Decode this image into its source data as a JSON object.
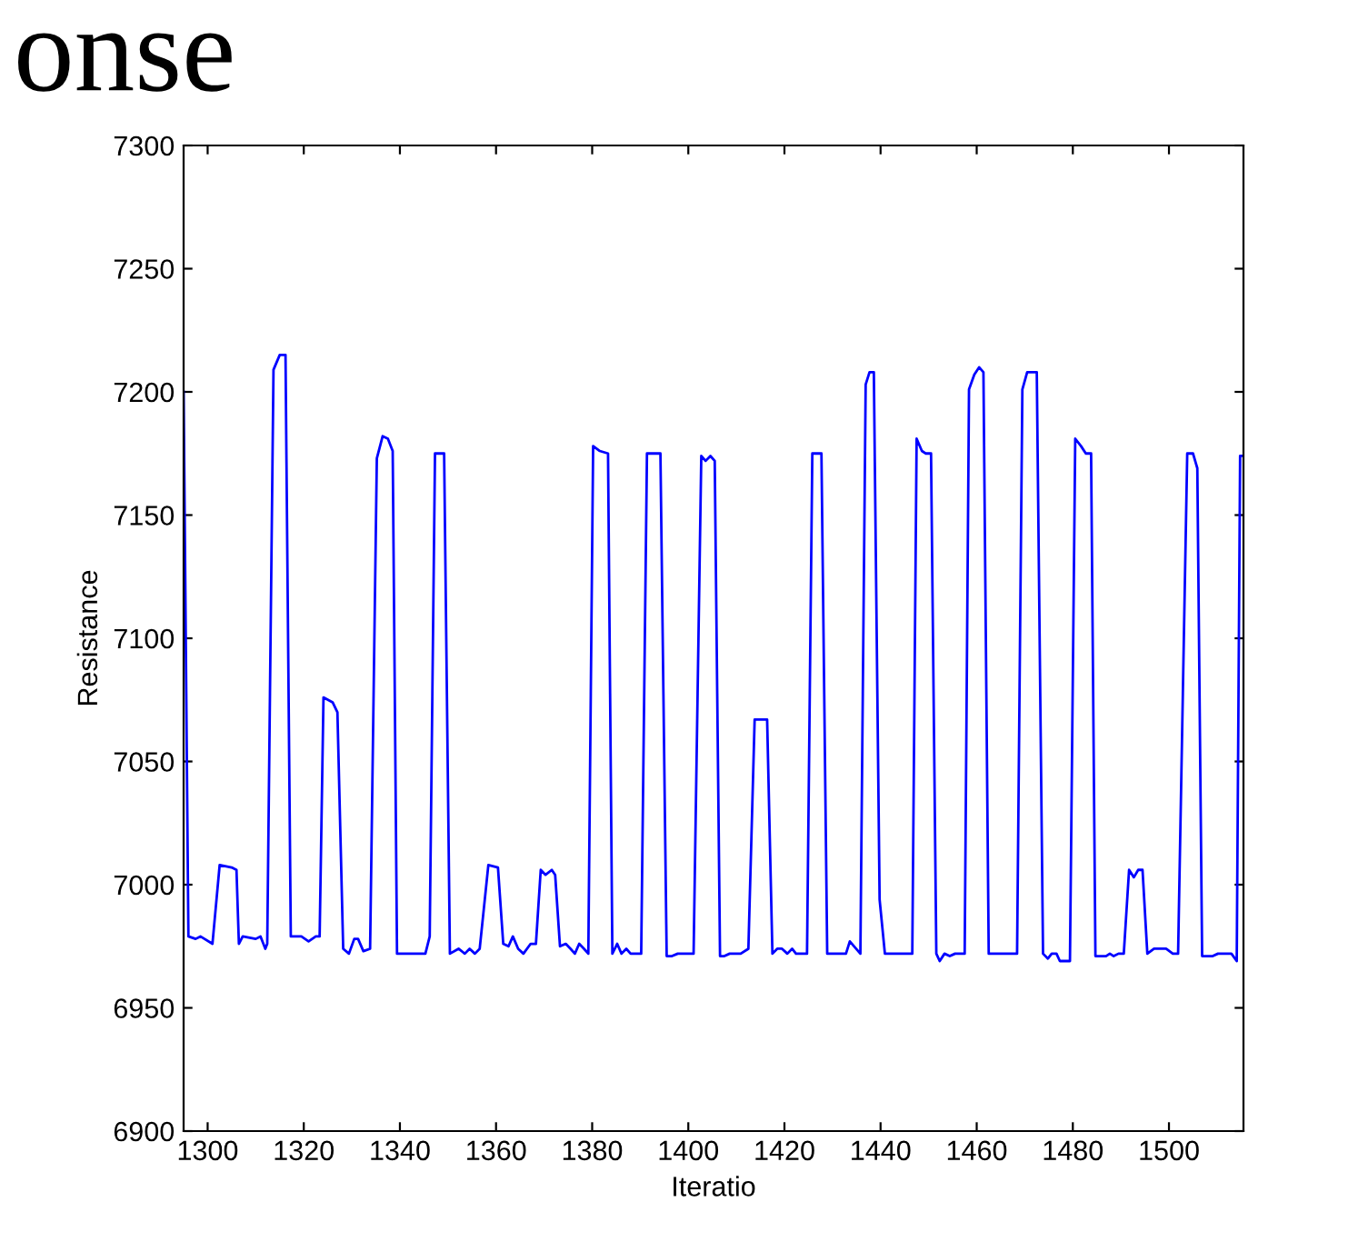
{
  "chart_data": {
    "type": "line",
    "title": "onse",
    "xlabel": "Iteratio",
    "ylabel": "Resistance",
    "xlim": [
      1295,
      1515.5
    ],
    "ylim": [
      6900,
      7300
    ],
    "xticks": [
      1300,
      1320,
      1340,
      1360,
      1380,
      1400,
      1420,
      1440,
      1460,
      1480,
      1500
    ],
    "yticks": [
      6900,
      6950,
      7000,
      7050,
      7100,
      7150,
      7200,
      7250,
      7300
    ],
    "grid": false,
    "marker": "none",
    "line_style": "solid",
    "series": [
      {
        "color": "#0000ff",
        "x": [
          1295,
          1296,
          1297.5,
          1298.5,
          1301,
          1302.5,
          1305,
          1306,
          1306.5,
          1307.3,
          1310,
          1311,
          1312,
          1312.4,
          1313.7,
          1315,
          1316.2,
          1317.3,
          1319.5,
          1321,
          1322.5,
          1323.3,
          1324.1,
          1326,
          1327,
          1328.2,
          1329.4,
          1330.5,
          1331.3,
          1332.4,
          1333.8,
          1335.2,
          1336.4,
          1337.5,
          1338.5,
          1339.4,
          1345.3,
          1346.2,
          1347.3,
          1349.2,
          1350.4,
          1352.2,
          1353.5,
          1354.5,
          1355.6,
          1356.6,
          1358.4,
          1360.4,
          1361.5,
          1362.6,
          1363.5,
          1364.6,
          1365.7,
          1367.2,
          1368.3,
          1369.3,
          1370.3,
          1371.6,
          1372.3,
          1373.3,
          1374.5,
          1375.5,
          1376.4,
          1377.3,
          1378.3,
          1379.2,
          1380.2,
          1381.6,
          1383.3,
          1384.2,
          1385.2,
          1386.1,
          1387.1,
          1388,
          1390.2,
          1391.4,
          1394.2,
          1395.5,
          1396.6,
          1397.8,
          1401.1,
          1402.7,
          1403.6,
          1404.6,
          1405.5,
          1406.6,
          1407.5,
          1408.6,
          1410.9,
          1412.5,
          1413.8,
          1416.4,
          1417.5,
          1418.5,
          1419.5,
          1420.6,
          1421.6,
          1422.4,
          1424.7,
          1425.8,
          1427.7,
          1428.9,
          1432.8,
          1433.6,
          1435.8,
          1436.9,
          1437.7,
          1438.6,
          1439.8,
          1440.9,
          1446.6,
          1447.5,
          1448.6,
          1449.4,
          1450.5,
          1451.6,
          1452.3,
          1453.3,
          1454.4,
          1455.5,
          1457.5,
          1458.4,
          1459.5,
          1460.5,
          1461.4,
          1462.5,
          1468.4,
          1469.5,
          1470.5,
          1472.5,
          1473.8,
          1474.8,
          1475.6,
          1476.6,
          1477.3,
          1479.4,
          1480.5,
          1481.7,
          1482.7,
          1483.8,
          1484.7,
          1486.9,
          1487.7,
          1488.5,
          1489.5,
          1490.6,
          1491.7,
          1492.7,
          1493.6,
          1494.5,
          1495.5,
          1496.9,
          1499.4,
          1500.8,
          1501.9,
          1503.8,
          1505,
          1505.9,
          1506.9,
          1509.1,
          1510.2,
          1513,
          1514.1,
          1514.8,
          1515.3
        ],
        "values": [
          7200,
          6979,
          6978,
          6979,
          6976,
          7008,
          7007,
          7006,
          6976,
          6979,
          6978,
          6979,
          6974,
          6976,
          7209,
          7215,
          7215,
          6979,
          6979,
          6977,
          6979,
          6979,
          7076,
          7074,
          7070,
          6974,
          6972,
          6978,
          6978,
          6973,
          6974,
          7173,
          7182,
          7181,
          7176,
          6972,
          6972,
          6979,
          7175,
          7175,
          6972,
          6974,
          6972,
          6974,
          6972,
          6974,
          7008,
          7007,
          6976,
          6975,
          6979,
          6974,
          6972,
          6976,
          6976,
          7006,
          7004,
          7006,
          7004,
          6975,
          6976,
          6974,
          6972,
          6976,
          6974,
          6972,
          7178,
          7176,
          7175,
          6972,
          6976,
          6972,
          6974,
          6972,
          6972,
          7175,
          7175,
          6971,
          6971,
          6972,
          6972,
          7174,
          7172,
          7174,
          7172,
          6971,
          6971,
          6972,
          6972,
          6974,
          7067,
          7067,
          6972,
          6974,
          6974,
          6972,
          6974,
          6972,
          6972,
          7175,
          7175,
          6972,
          6972,
          6977,
          6972,
          7203,
          7208,
          7208,
          6994,
          6972,
          6972,
          7181,
          7176,
          7175,
          7175,
          6972,
          6969,
          6972,
          6971,
          6972,
          6972,
          7201,
          7207,
          7210,
          7208,
          6972,
          6972,
          7201,
          7208,
          7208,
          6972,
          6970,
          6972,
          6972,
          6969,
          6969,
          7181,
          7178,
          7175,
          7175,
          6971,
          6971,
          6972,
          6971,
          6972,
          6972,
          7006,
          7003,
          7006,
          7006,
          6972,
          6974,
          6974,
          6972,
          6972,
          7175,
          7175,
          7169,
          6971,
          6971,
          6972,
          6972,
          6969,
          7174,
          7174
        ]
      }
    ]
  }
}
